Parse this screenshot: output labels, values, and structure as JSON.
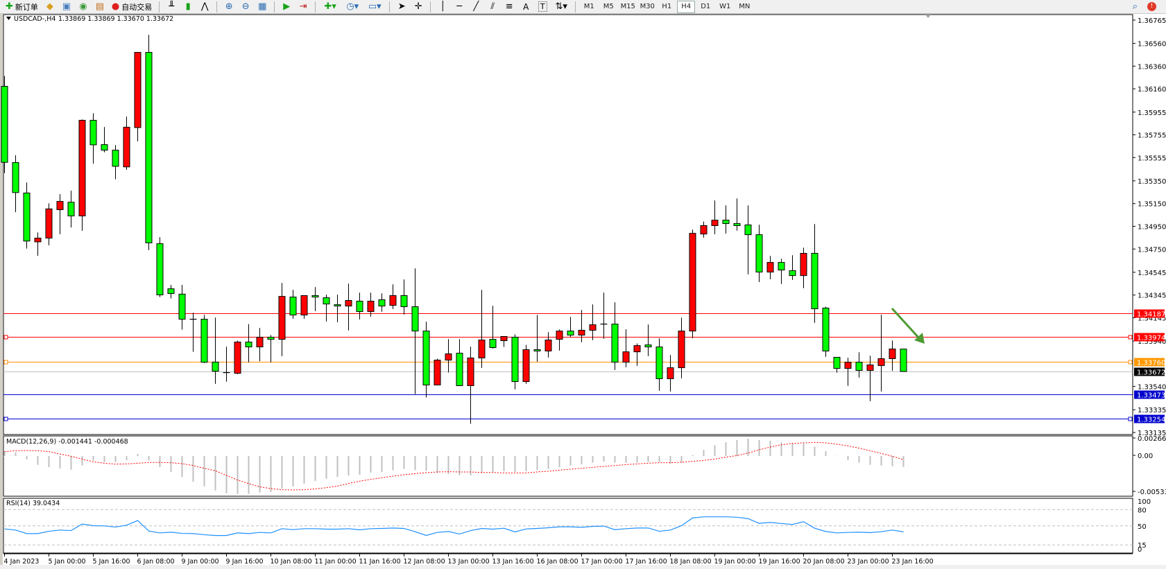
{
  "toolbar": {
    "new_order": "新订单",
    "auto_trading": "自动交易",
    "icons": [
      "market-watch-icon",
      "data-window-icon",
      "navigator-icon",
      "terminal-icon"
    ],
    "chart_tools": [
      "bar-chart-icon",
      "candlestick-icon",
      "line-chart-icon",
      "zoom-in-icon",
      "zoom-out-icon",
      "tile-windows-icon",
      "auto-scroll-icon",
      "chart-shift-icon",
      "indicators-icon",
      "periods-icon",
      "templates-icon",
      "cursor-icon",
      "crosshair-icon",
      "vertical-line-icon",
      "horizontal-line-icon",
      "trendline-icon",
      "equidistant-channel-icon",
      "fibonacci-icon",
      "text-icon",
      "text-label-icon",
      "arrows-icon"
    ],
    "text_tools": {
      "text": "A",
      "label": "T"
    },
    "timeframes": [
      "M1",
      "M5",
      "M15",
      "M30",
      "H1",
      "H4",
      "D1",
      "W1",
      "MN"
    ],
    "active_timeframe": "H4"
  },
  "chart_header": {
    "symbol": "USDCAD-,H4",
    "ohlc": "1.33869 1.33869 1.33670 1.33672"
  },
  "chart_data": {
    "type": "candlestick",
    "symbol": "USDCAD-",
    "timeframe": "H4",
    "bull_color": "#ff0000",
    "bear_color": "#00ff00",
    "ylim": [
      1.33135,
      1.36765
    ],
    "price_ticks": [
      "1.36765",
      "1.36560",
      "1.36360",
      "1.36160",
      "1.35955",
      "1.35755",
      "1.35555",
      "1.35350",
      "1.35150",
      "1.34950",
      "1.34750",
      "1.34545",
      "1.34345",
      "1.34145",
      "1.33940",
      "1.33540",
      "1.33335",
      "1.33135"
    ],
    "ohlc_columns": [
      "open",
      "high",
      "low",
      "close"
    ],
    "candles": [
      [
        1.36182,
        1.36272,
        1.35418,
        1.35513
      ],
      [
        1.35511,
        1.35575,
        1.35074,
        1.35247
      ],
      [
        1.35243,
        1.35335,
        1.34754,
        1.3482
      ],
      [
        1.34813,
        1.34896,
        1.3469,
        1.34846
      ],
      [
        1.34846,
        1.35152,
        1.34782,
        1.35103
      ],
      [
        1.35096,
        1.35233,
        1.3488,
        1.35169
      ],
      [
        1.35162,
        1.35264,
        1.34939,
        1.35041
      ],
      [
        1.35041,
        1.3589,
        1.3491,
        1.35883
      ],
      [
        1.35883,
        1.35945,
        1.35501,
        1.35667
      ],
      [
        1.35669,
        1.35824,
        1.35601,
        1.3562
      ],
      [
        1.3562,
        1.35665,
        1.35364,
        1.35478
      ],
      [
        1.35473,
        1.35916,
        1.35447,
        1.35822
      ],
      [
        1.35819,
        1.36481,
        1.35698,
        1.36481
      ],
      [
        1.36481,
        1.36635,
        1.3474,
        1.34804
      ],
      [
        1.34797,
        1.34854,
        1.34327,
        1.34346
      ],
      [
        1.344,
        1.34434,
        1.34315,
        1.34358
      ],
      [
        1.34353,
        1.34434,
        1.3404,
        1.34132
      ],
      [
        1.34132,
        1.34189,
        1.33845,
        1.3413
      ],
      [
        1.34132,
        1.3417,
        1.33746,
        1.33753
      ],
      [
        1.33755,
        1.34146,
        1.33563,
        1.33674
      ],
      [
        1.33662,
        1.3389,
        1.33582,
        1.3366
      ],
      [
        1.33656,
        1.33943,
        1.33648,
        1.33931
      ],
      [
        1.33931,
        1.34089,
        1.33752,
        1.33888
      ],
      [
        1.33888,
        1.34055,
        1.33762,
        1.33974
      ],
      [
        1.33974,
        1.33992,
        1.33752,
        1.33955
      ],
      [
        1.33955,
        1.34451,
        1.33807,
        1.34333
      ],
      [
        1.34327,
        1.3439,
        1.34136,
        1.34169
      ],
      [
        1.34169,
        1.3434,
        1.34136,
        1.3434
      ],
      [
        1.3434,
        1.34415,
        1.34203,
        1.34327
      ],
      [
        1.34321,
        1.34348,
        1.34112,
        1.34266
      ],
      [
        1.3426,
        1.34348,
        1.34106,
        1.34248
      ],
      [
        1.34248,
        1.34445,
        1.34033,
        1.34297
      ],
      [
        1.34291,
        1.34366,
        1.3413,
        1.34199
      ],
      [
        1.34199,
        1.34366,
        1.34154,
        1.34291
      ],
      [
        1.34303,
        1.3436,
        1.34197,
        1.34248
      ],
      [
        1.34254,
        1.34439,
        1.34222,
        1.3434
      ],
      [
        1.3434,
        1.34482,
        1.34173,
        1.34242
      ],
      [
        1.34242,
        1.34579,
        1.33473,
        1.34028
      ],
      [
        1.34028,
        1.3411,
        1.33443,
        1.33553
      ],
      [
        1.33553,
        1.33785,
        1.33553,
        1.33772
      ],
      [
        1.33772,
        1.33957,
        1.33663,
        1.33827
      ],
      [
        1.33833,
        1.33957,
        1.33547,
        1.33547
      ],
      [
        1.33547,
        1.3389,
        1.33211,
        1.33791
      ],
      [
        1.33791,
        1.3439,
        1.33703,
        1.33949
      ],
      [
        1.33955,
        1.3425,
        1.33874,
        1.33882
      ],
      [
        1.33943,
        1.3398,
        1.33888,
        1.3398
      ],
      [
        1.33974,
        1.33998,
        1.33514,
        1.33583
      ],
      [
        1.33583,
        1.33906,
        1.33563,
        1.33864
      ],
      [
        1.33864,
        1.34169,
        1.33758,
        1.33852
      ],
      [
        1.33852,
        1.34018,
        1.33795,
        1.33949
      ],
      [
        1.33955,
        1.34041,
        1.33856,
        1.34028
      ],
      [
        1.34028,
        1.34152,
        1.33974,
        1.33992
      ],
      [
        1.33992,
        1.34213,
        1.33929,
        1.34035
      ],
      [
        1.34035,
        1.34262,
        1.33947,
        1.34083
      ],
      [
        1.34089,
        1.34366,
        1.33959,
        1.34087
      ],
      [
        1.34089,
        1.34281,
        1.33685,
        1.33754
      ],
      [
        1.33754,
        1.34043,
        1.33709,
        1.33845
      ],
      [
        1.33845,
        1.33919,
        1.33721,
        1.339
      ],
      [
        1.33906,
        1.34085,
        1.33807,
        1.33888
      ],
      [
        1.33888,
        1.33963,
        1.33502,
        1.33608
      ],
      [
        1.33608,
        1.33817,
        1.33496,
        1.33705
      ],
      [
        1.33705,
        1.34146,
        1.33612,
        1.34028
      ],
      [
        1.34028,
        1.34921,
        1.33965,
        1.34888
      ],
      [
        1.34882,
        1.34992,
        1.3485,
        1.34956
      ],
      [
        1.34956,
        1.35177,
        1.3488,
        1.35004
      ],
      [
        1.35004,
        1.35134,
        1.34886,
        1.34974
      ],
      [
        1.34974,
        1.35195,
        1.34911,
        1.34956
      ],
      [
        1.34962,
        1.35134,
        1.34527,
        1.34876
      ],
      [
        1.34876,
        1.34964,
        1.34459,
        1.34547
      ],
      [
        1.34547,
        1.34689,
        1.34484,
        1.34632
      ],
      [
        1.34632,
        1.34665,
        1.34441,
        1.34565
      ],
      [
        1.34559,
        1.34695,
        1.34478,
        1.34516
      ],
      [
        1.34516,
        1.34762,
        1.34405,
        1.34712
      ],
      [
        1.34712,
        1.3497,
        1.341,
        1.34224
      ],
      [
        1.3423,
        1.34242,
        1.33801,
        1.33852
      ],
      [
        1.33797,
        1.33797,
        1.33661,
        1.33699
      ],
      [
        1.33699,
        1.33793,
        1.33545,
        1.33754
      ],
      [
        1.33754,
        1.33841,
        1.33618,
        1.33681
      ],
      [
        1.33681,
        1.33811,
        1.3341,
        1.3373
      ],
      [
        1.33724,
        1.34171,
        1.33496,
        1.33785
      ],
      [
        1.33785,
        1.33945,
        1.33677,
        1.3387
      ],
      [
        1.33869,
        1.33869,
        1.3367,
        1.33672
      ]
    ],
    "price_lines": [
      {
        "price": "1.34187",
        "color": "#ff0000",
        "label_bg": "#ff0000",
        "label_color": "#ffffff",
        "markers": false
      },
      {
        "price": "1.33974",
        "color": "#ff0000",
        "label_bg": "#ff0000",
        "label_color": "#ffffff",
        "markers": true
      },
      {
        "price": "1.33760",
        "color": "#ff8c00",
        "label_bg": "#ff9900",
        "label_color": "#ffffff",
        "markers": true
      },
      {
        "price": "1.33672",
        "color": "#c0c0c0",
        "label_bg": "#000000",
        "label_color": "#ffffff",
        "markers": false
      },
      {
        "price": "1.33473",
        "color": "#0000cd",
        "label_bg": "#0000cd",
        "label_color": "#ffffff",
        "markers": false
      },
      {
        "price": "1.33254",
        "color": "#0000cd",
        "label_bg": "#0000cd",
        "label_color": "#ffffff",
        "markers": true
      }
    ],
    "annotation": {
      "type": "arrow",
      "color": "#4f9a33",
      "direction": "down-right"
    },
    "time_labels": [
      {
        "text": "4 Jan 2023",
        "bar": 0
      },
      {
        "text": "5 Jan 00:00",
        "bar": 4
      },
      {
        "text": "5 Jan 16:00",
        "bar": 8
      },
      {
        "text": "6 Jan 08:00",
        "bar": 12
      },
      {
        "text": "9 Jan 00:00",
        "bar": 16
      },
      {
        "text": "9 Jan 16:00",
        "bar": 20
      },
      {
        "text": "10 Jan 08:00",
        "bar": 24
      },
      {
        "text": "11 Jan 00:00",
        "bar": 28
      },
      {
        "text": "11 Jan 16:00",
        "bar": 32
      },
      {
        "text": "12 Jan 08:00",
        "bar": 36
      },
      {
        "text": "13 Jan 00:00",
        "bar": 40
      },
      {
        "text": "13 Jan 16:00",
        "bar": 44
      },
      {
        "text": "16 Jan 08:00",
        "bar": 48
      },
      {
        "text": "17 Jan 00:00",
        "bar": 52
      },
      {
        "text": "17 Jan 16:00",
        "bar": 56
      },
      {
        "text": "18 Jan 08:00",
        "bar": 60
      },
      {
        "text": "19 Jan 00:00",
        "bar": 64
      },
      {
        "text": "19 Jan 16:00",
        "bar": 68
      },
      {
        "text": "20 Jan 08:00",
        "bar": 72
      },
      {
        "text": "23 Jan 00:00",
        "bar": 76
      },
      {
        "text": "23 Jan 16:00",
        "bar": 80
      }
    ],
    "macd": {
      "label": "MACD(12,26,9) -0.001441 -0.000468",
      "ylim": [
        -0.00533,
        0.002668
      ],
      "ticks": [
        "0.002668",
        "0.00",
        "-0.00533"
      ],
      "histogram_color": "#c0c0c0",
      "signal_color": "#ff0000",
      "main": [
        0.00058,
        0.00049,
        -0.00043,
        -0.00116,
        -0.00146,
        -0.00165,
        -0.0018,
        -0.00125,
        -0.00058,
        -0.00079,
        -0.00079,
        -0.00055,
        0.00027,
        -0.00055,
        -0.00146,
        -0.0021,
        -0.00278,
        -0.00339,
        -0.004,
        -0.00454,
        -0.00491,
        -0.005,
        -0.005,
        -0.00482,
        -0.00476,
        -0.0043,
        -0.004,
        -0.00363,
        -0.00329,
        -0.00299,
        -0.00278,
        -0.00256,
        -0.00247,
        -0.00217,
        -0.0021,
        -0.00186,
        -0.00171,
        -0.00186,
        -0.00195,
        -0.00223,
        -0.00238,
        -0.00253,
        -0.00256,
        -0.00223,
        -0.0021,
        -0.00201,
        -0.0021,
        -0.00201,
        -0.00186,
        -0.00171,
        -0.00146,
        -0.00125,
        -0.0011,
        -0.00088,
        -0.00073,
        -0.00088,
        -0.00088,
        -0.00088,
        -0.00079,
        -0.00079,
        -0.00101,
        -0.00088,
        0.00012,
        0.00082,
        0.00143,
        0.0018,
        0.0021,
        0.00229,
        0.0021,
        0.00201,
        0.0018,
        0.00174,
        0.00165,
        0.00125,
        0.00064,
        3e-05,
        -0.00055,
        -0.00088,
        -0.00116,
        -0.00125,
        -0.00134,
        -0.001441
      ],
      "signal": [
        0.00058,
        0.0007,
        0.00073,
        0.0007,
        0.00058,
        0.00027,
        -3e-05,
        -0.0004,
        -0.00076,
        -0.00095,
        -0.00107,
        -0.00104,
        -0.00095,
        -0.00085,
        -0.00085,
        -0.00088,
        -0.00101,
        -0.00125,
        -0.00162,
        -0.00195,
        -0.00256,
        -0.00317,
        -0.00363,
        -0.00406,
        -0.0043,
        -0.00445,
        -0.00448,
        -0.00445,
        -0.00433,
        -0.00418,
        -0.00397,
        -0.00363,
        -0.00332,
        -0.00308,
        -0.00287,
        -0.00265,
        -0.00247,
        -0.00232,
        -0.0022,
        -0.0021,
        -0.00207,
        -0.0021,
        -0.0021,
        -0.00217,
        -0.00217,
        -0.00223,
        -0.00223,
        -0.00223,
        -0.0021,
        -0.00201,
        -0.00186,
        -0.00174,
        -0.00162,
        -0.00149,
        -0.00137,
        -0.00125,
        -0.00113,
        -0.00104,
        -0.00095,
        -0.00088,
        -0.00088,
        -0.00082,
        -0.0007,
        -0.00058,
        -0.0004,
        -0.00015,
        6e-05,
        0.0004,
        0.00082,
        0.00119,
        0.00149,
        0.00165,
        0.00174,
        0.0018,
        0.00174,
        0.00156,
        0.00134,
        0.00104,
        0.0007,
        0.00034,
        -3e-05,
        -0.000468
      ]
    },
    "rsi": {
      "label": "RSI(14) 39.0434",
      "ylim": [
        0,
        100
      ],
      "ticks": [
        "100",
        "80",
        "50",
        "15",
        "0"
      ],
      "levels": [
        80,
        50,
        15
      ],
      "color": "#1e90ff",
      "values": [
        44.4,
        42.3,
        35.9,
        35.9,
        40.1,
        42.3,
        41.4,
        53.4,
        50.4,
        50.0,
        47.9,
        51.3,
        59.9,
        40.6,
        37.1,
        38.4,
        36.3,
        35.9,
        33.7,
        32.4,
        32.4,
        37.1,
        35.9,
        38.0,
        37.1,
        44.9,
        43.1,
        44.9,
        44.9,
        44.0,
        44.0,
        44.9,
        42.7,
        44.9,
        45.3,
        46.1,
        45.3,
        39.3,
        32.4,
        38.0,
        39.7,
        35.0,
        41.4,
        45.3,
        44.0,
        45.7,
        38.9,
        44.4,
        45.3,
        46.6,
        48.3,
        48.3,
        47.4,
        49.1,
        49.6,
        43.1,
        44.9,
        46.1,
        46.1,
        40.1,
        42.3,
        50.4,
        64.6,
        66.7,
        66.7,
        66.7,
        65.9,
        63.3,
        54.7,
        56.4,
        54.3,
        52.6,
        57.7,
        45.7,
        39.7,
        37.1,
        38.0,
        38.4,
        37.6,
        39.3,
        42.3,
        39.0434
      ]
    }
  }
}
